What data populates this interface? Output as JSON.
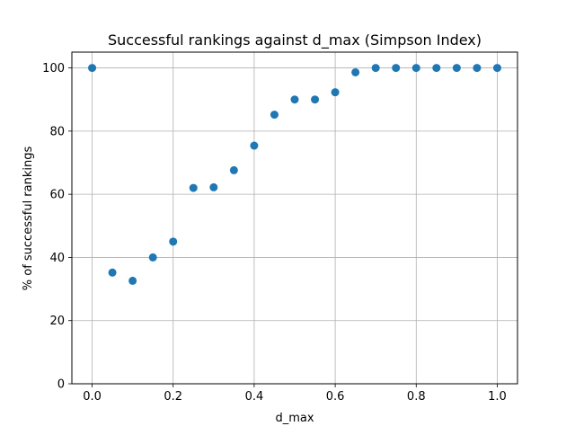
{
  "chart_data": {
    "type": "scatter",
    "title": "Successful rankings against d_max (Simpson Index)",
    "xlabel": "d_max",
    "ylabel": "% of successful rankings",
    "xlim": [
      -0.05,
      1.05
    ],
    "ylim": [
      0,
      105
    ],
    "xticks": [
      0.0,
      0.2,
      0.4,
      0.6,
      0.8,
      1.0
    ],
    "xtick_labels": [
      "0.0",
      "0.2",
      "0.4",
      "0.6",
      "0.8",
      "1.0"
    ],
    "yticks": [
      0,
      20,
      40,
      60,
      80,
      100
    ],
    "ytick_labels": [
      "0",
      "20",
      "40",
      "60",
      "80",
      "100"
    ],
    "grid": true,
    "marker_color": "#1f77b4",
    "series": [
      {
        "x": [
          0.0,
          0.05,
          0.1,
          0.15,
          0.2,
          0.25,
          0.3,
          0.35,
          0.4,
          0.45,
          0.5,
          0.55,
          0.6,
          0.65,
          0.7,
          0.75,
          0.8,
          0.85,
          0.9,
          0.95,
          1.0
        ],
        "y": [
          100,
          35.2,
          32.6,
          40.0,
          45.0,
          62.0,
          62.2,
          67.6,
          75.4,
          85.2,
          90.0,
          90.0,
          92.3,
          98.6,
          100,
          100,
          100,
          100,
          100,
          100,
          100
        ]
      }
    ]
  }
}
